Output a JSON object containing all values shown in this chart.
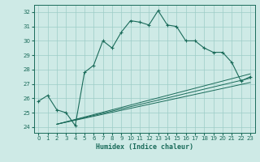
{
  "xlabel": "Humidex (Indice chaleur)",
  "bg_color": "#ceeae6",
  "grid_color": "#9dccc7",
  "line_color": "#1a6b5a",
  "x_ticks": [
    0,
    1,
    2,
    3,
    4,
    5,
    6,
    7,
    8,
    9,
    10,
    11,
    12,
    13,
    14,
    15,
    16,
    17,
    18,
    19,
    20,
    21,
    22,
    23
  ],
  "y_ticks": [
    24,
    25,
    26,
    27,
    28,
    29,
    30,
    31,
    32
  ],
  "ylim": [
    23.6,
    32.5
  ],
  "xlim": [
    -0.5,
    23.5
  ],
  "main_x": [
    0,
    1,
    2,
    3,
    4,
    5,
    6,
    7,
    8,
    9,
    10,
    11,
    12,
    13,
    14,
    15,
    16,
    17,
    18,
    19,
    20,
    21,
    22,
    23
  ],
  "main_y": [
    25.8,
    26.2,
    25.2,
    25.0,
    24.1,
    27.8,
    28.3,
    30.0,
    29.5,
    30.6,
    31.4,
    31.3,
    31.1,
    32.1,
    31.1,
    31.0,
    30.0,
    30.0,
    29.5,
    29.2,
    29.2,
    28.5,
    27.2,
    27.5
  ],
  "line1_x": [
    2,
    23
  ],
  "line1_y": [
    24.2,
    27.7
  ],
  "line2_x": [
    2,
    23
  ],
  "line2_y": [
    24.2,
    27.4
  ],
  "line3_x": [
    2,
    23
  ],
  "line3_y": [
    24.2,
    27.1
  ]
}
